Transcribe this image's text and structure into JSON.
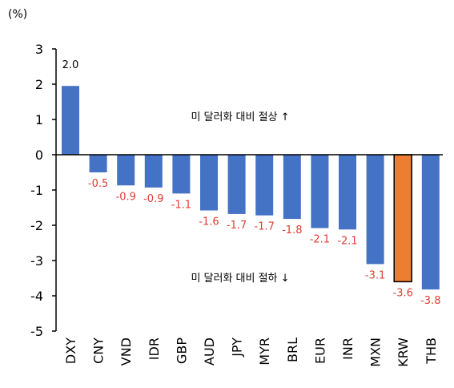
{
  "chart_data": {
    "type": "bar",
    "title": "",
    "unit_label": "(%)",
    "xlabel": "",
    "ylabel": "",
    "ylim": [
      -5,
      3
    ],
    "yticks": [
      3,
      2,
      1,
      0,
      -1,
      -2,
      -3,
      -4,
      -5
    ],
    "grid": false,
    "legend": "none",
    "categories": [
      "DXY",
      "CNY",
      "VND",
      "IDR",
      "GBP",
      "AUD",
      "JPY",
      "MYR",
      "BRL",
      "EUR",
      "INR",
      "MXN",
      "KRW",
      "THB"
    ],
    "values": [
      1.95,
      -0.5,
      -0.87,
      -0.93,
      -1.1,
      -1.58,
      -1.68,
      -1.72,
      -1.82,
      -2.08,
      -2.12,
      -3.1,
      -3.6,
      -3.82
    ],
    "data_labels": [
      "2.0",
      "-0.5",
      "-0.9",
      "-0.9",
      "-1.1",
      "-1.6",
      "-1.7",
      "-1.7",
      "-1.8",
      "-2.1",
      "-2.1",
      "-3.1",
      "-3.6",
      "-3.8"
    ],
    "highlight_category": "KRW",
    "annotations": [
      {
        "text": "미 달러화 대비 절상 ↑"
      },
      {
        "text": "미 달러화 대비 절하 ↓"
      }
    ],
    "colors": {
      "bar": "#4472c4",
      "highlight": "#ed7d31",
      "highlight_border": "#000000",
      "positive_label": "#000000",
      "negative_label": "#e03c31",
      "axis": "#000000"
    }
  }
}
